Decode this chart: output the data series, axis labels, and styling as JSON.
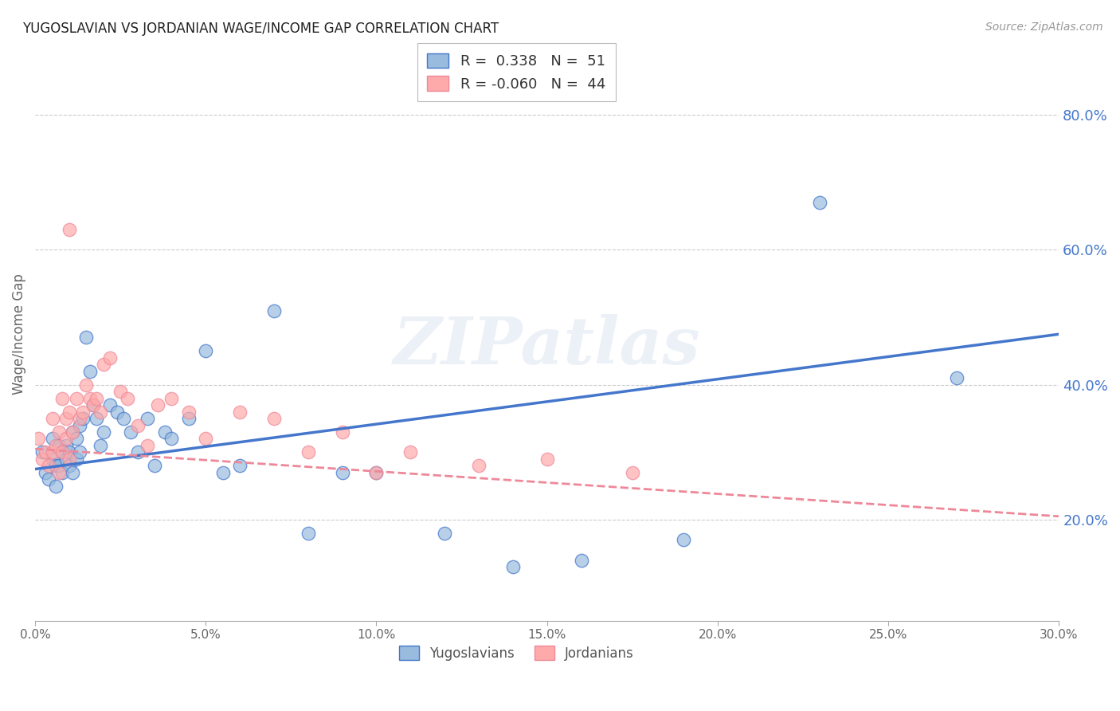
{
  "title": "YUGOSLAVIAN VS JORDANIAN WAGE/INCOME GAP CORRELATION CHART",
  "source": "Source: ZipAtlas.com",
  "ylabel": "Wage/Income Gap",
  "xlim": [
    0.0,
    0.3
  ],
  "ylim": [
    0.05,
    0.9
  ],
  "xticks": [
    0.0,
    0.05,
    0.1,
    0.15,
    0.2,
    0.25,
    0.3
  ],
  "xtick_labels": [
    "0.0%",
    "5.0%",
    "10.0%",
    "15.0%",
    "20.0%",
    "25.0%",
    "30.0%"
  ],
  "yticks_right": [
    0.2,
    0.4,
    0.6,
    0.8
  ],
  "ytick_labels_right": [
    "20.0%",
    "40.0%",
    "60.0%",
    "80.0%"
  ],
  "blue_color": "#99BBDD",
  "pink_color": "#FFAAAA",
  "blue_line_color": "#4477CC",
  "pink_line_color": "#EE8899",
  "watermark": "ZIPatlas",
  "blue_x": [
    0.002,
    0.003,
    0.004,
    0.005,
    0.005,
    0.006,
    0.006,
    0.007,
    0.007,
    0.008,
    0.008,
    0.009,
    0.009,
    0.01,
    0.01,
    0.011,
    0.011,
    0.012,
    0.012,
    0.013,
    0.013,
    0.014,
    0.015,
    0.016,
    0.017,
    0.018,
    0.019,
    0.02,
    0.022,
    0.024,
    0.026,
    0.028,
    0.03,
    0.033,
    0.035,
    0.038,
    0.04,
    0.045,
    0.05,
    0.055,
    0.06,
    0.07,
    0.08,
    0.09,
    0.1,
    0.12,
    0.14,
    0.16,
    0.19,
    0.23,
    0.27
  ],
  "blue_y": [
    0.3,
    0.27,
    0.26,
    0.29,
    0.32,
    0.28,
    0.25,
    0.31,
    0.28,
    0.3,
    0.27,
    0.29,
    0.31,
    0.3,
    0.28,
    0.33,
    0.27,
    0.32,
    0.29,
    0.3,
    0.34,
    0.35,
    0.47,
    0.42,
    0.37,
    0.35,
    0.31,
    0.33,
    0.37,
    0.36,
    0.35,
    0.33,
    0.3,
    0.35,
    0.28,
    0.33,
    0.32,
    0.35,
    0.45,
    0.27,
    0.28,
    0.51,
    0.18,
    0.27,
    0.27,
    0.18,
    0.13,
    0.14,
    0.17,
    0.67,
    0.41
  ],
  "pink_x": [
    0.001,
    0.002,
    0.003,
    0.004,
    0.005,
    0.005,
    0.006,
    0.007,
    0.007,
    0.008,
    0.008,
    0.009,
    0.009,
    0.01,
    0.01,
    0.011,
    0.012,
    0.013,
    0.014,
    0.015,
    0.016,
    0.017,
    0.018,
    0.019,
    0.02,
    0.022,
    0.025,
    0.027,
    0.03,
    0.033,
    0.036,
    0.04,
    0.045,
    0.05,
    0.06,
    0.07,
    0.08,
    0.09,
    0.1,
    0.11,
    0.13,
    0.15,
    0.175,
    0.01
  ],
  "pink_y": [
    0.32,
    0.29,
    0.3,
    0.28,
    0.3,
    0.35,
    0.31,
    0.27,
    0.33,
    0.3,
    0.38,
    0.32,
    0.35,
    0.29,
    0.36,
    0.33,
    0.38,
    0.35,
    0.36,
    0.4,
    0.38,
    0.37,
    0.38,
    0.36,
    0.43,
    0.44,
    0.39,
    0.38,
    0.34,
    0.31,
    0.37,
    0.38,
    0.36,
    0.32,
    0.36,
    0.35,
    0.3,
    0.33,
    0.27,
    0.3,
    0.28,
    0.29,
    0.27,
    0.63
  ],
  "blue_trend_x": [
    0.0,
    0.3
  ],
  "blue_trend_y": [
    0.275,
    0.475
  ],
  "pink_trend_x": [
    0.0,
    0.3
  ],
  "pink_trend_y": [
    0.305,
    0.205
  ]
}
